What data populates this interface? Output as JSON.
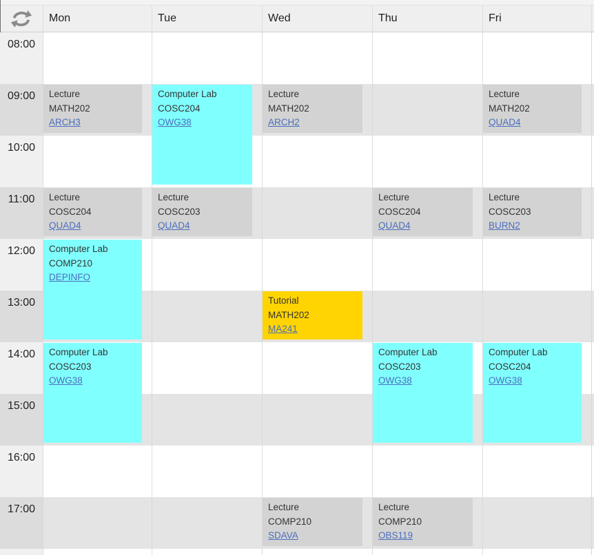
{
  "header": {
    "refresh_icon": "refresh",
    "days": [
      "Mon",
      "Tue",
      "Wed",
      "Thu",
      "Fri"
    ]
  },
  "times": [
    "08:00",
    "09:00",
    "10:00",
    "11:00",
    "12:00",
    "13:00",
    "14:00",
    "15:00",
    "16:00",
    "17:00"
  ],
  "events": [
    {
      "day": "Mon",
      "day_index": 0,
      "start": "09:00",
      "end": "10:00",
      "type": "Lecture",
      "course": "MATH202",
      "room": "ARCH3",
      "color": "gray"
    },
    {
      "day": "Mon",
      "day_index": 0,
      "start": "11:00",
      "end": "12:00",
      "type": "Lecture",
      "course": "COSC204",
      "room": "QUAD4",
      "color": "gray"
    },
    {
      "day": "Mon",
      "day_index": 0,
      "start": "12:00",
      "end": "14:00",
      "type": "Computer Lab",
      "course": "COMP210",
      "room": "DEPINFO",
      "color": "cyan"
    },
    {
      "day": "Mon",
      "day_index": 0,
      "start": "14:00",
      "end": "16:00",
      "type": "Computer Lab",
      "course": "COSC203",
      "room": "OWG38",
      "color": "cyan"
    },
    {
      "day": "Tue",
      "day_index": 1,
      "start": "09:00",
      "end": "11:00",
      "type": "Computer Lab",
      "course": "COSC204",
      "room": "OWG38",
      "color": "cyan"
    },
    {
      "day": "Tue",
      "day_index": 1,
      "start": "11:00",
      "end": "12:00",
      "type": "Lecture",
      "course": "COSC203",
      "room": "QUAD4",
      "color": "gray"
    },
    {
      "day": "Wed",
      "day_index": 2,
      "start": "09:00",
      "end": "10:00",
      "type": "Lecture",
      "course": "MATH202",
      "room": "ARCH2",
      "color": "gray"
    },
    {
      "day": "Wed",
      "day_index": 2,
      "start": "13:00",
      "end": "14:00",
      "type": "Tutorial",
      "course": "MATH202",
      "room": "MA241",
      "color": "yellow"
    },
    {
      "day": "Wed",
      "day_index": 2,
      "start": "17:00",
      "end": "18:00",
      "type": "Lecture",
      "course": "COMP210",
      "room": "SDAVA",
      "color": "gray"
    },
    {
      "day": "Thu",
      "day_index": 3,
      "start": "11:00",
      "end": "12:00",
      "type": "Lecture",
      "course": "COSC204",
      "room": "QUAD4",
      "color": "gray"
    },
    {
      "day": "Thu",
      "day_index": 3,
      "start": "14:00",
      "end": "16:00",
      "type": "Computer Lab",
      "course": "COSC203",
      "room": "OWG38",
      "color": "cyan"
    },
    {
      "day": "Thu",
      "day_index": 3,
      "start": "17:00",
      "end": "18:00",
      "type": "Lecture",
      "course": "COMP210",
      "room": "OBS119",
      "color": "gray"
    },
    {
      "day": "Fri",
      "day_index": 4,
      "start": "09:00",
      "end": "10:00",
      "type": "Lecture",
      "course": "MATH202",
      "room": "QUAD4",
      "color": "gray"
    },
    {
      "day": "Fri",
      "day_index": 4,
      "start": "11:00",
      "end": "12:00",
      "type": "Lecture",
      "course": "COSC203",
      "room": "BURN2",
      "color": "gray"
    },
    {
      "day": "Fri",
      "day_index": 4,
      "start": "14:00",
      "end": "16:00",
      "type": "Computer Lab",
      "course": "COSC204",
      "room": "OWG38",
      "color": "cyan"
    }
  ],
  "colors": {
    "event_gray": "#d3d3d3",
    "event_cyan": "#80ffff",
    "event_yellow": "#ffd400",
    "room_link": "#4a6ebd",
    "row_alt_bg": "#e4e4e4",
    "header_bg": "#efefef"
  }
}
